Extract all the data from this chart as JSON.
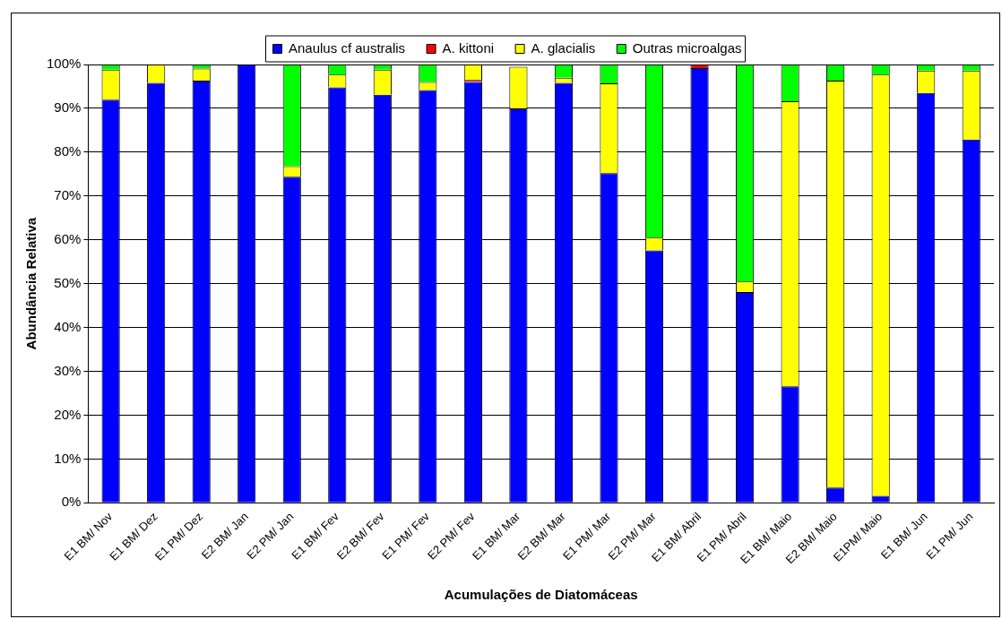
{
  "chart_data": {
    "type": "bar",
    "stacked": true,
    "xlabel": "Acumulações de Diatomáceas",
    "ylabel": "Abundância Relativa",
    "categories": [
      "E1 BM/ Nov",
      "E1 BM/ Dez",
      "E1 PM/ Dez",
      "E2 BM/ Jan",
      "E2 PM/ Jan",
      "E1 BM/ Fev",
      "E2 BM/ Fev",
      "E1 PM/ Fev",
      "E2 PM/ Fev",
      "E1 BM/ Mar",
      "E2 BM/ Mar",
      "E1 PM/ Mar",
      "E2 PM/ Mar",
      "E1 BM/ Abril",
      "E1 PM/ Abril",
      "E1 BM/ Maio",
      "E2 BM/ Maio",
      "E1PM/ Maio",
      "E1 BM/ Jun",
      "E1 PM/ Jun"
    ],
    "series": [
      {
        "name": "Anaulus cf australis",
        "color": "#0000ff",
        "values": [
          92,
          95.8,
          96.3,
          100,
          74.4,
          94.8,
          93.1,
          94.2,
          96,
          90,
          95.8,
          75.2,
          57.6,
          99.2,
          48.1,
          26.6,
          3.5,
          1.6,
          93.5,
          82.9
        ]
      },
      {
        "name": "A. kittoni",
        "color": "#ff0000",
        "values": [
          0,
          0,
          0,
          0,
          0,
          0,
          0,
          0,
          0.5,
          null,
          0,
          0,
          0,
          0.8,
          0,
          0,
          0,
          0,
          0,
          0
        ]
      },
      {
        "name": "A. glacialis",
        "color": "#ffff00",
        "values": [
          6.8,
          4.2,
          2.8,
          0,
          2.4,
          2.9,
          5.7,
          1.8,
          3.5,
          9.5,
          1.2,
          20.5,
          2.9,
          0,
          2.4,
          65,
          92.8,
          96.1,
          5.1,
          15.7
        ]
      },
      {
        "name": "Outras microalgas",
        "color": "#00ff00",
        "values": [
          1.2,
          0,
          0.9,
          0,
          23.2,
          2.3,
          1.2,
          4,
          0,
          0,
          3,
          4.3,
          39.5,
          0,
          49.5,
          8.4,
          3.7,
          2.3,
          1.4,
          1.4
        ]
      }
    ],
    "ylim": [
      0,
      100
    ],
    "yticks": [
      {
        "value": 0,
        "label": "0%"
      },
      {
        "value": 10,
        "label": "10%"
      },
      {
        "value": 20,
        "label": "20%"
      },
      {
        "value": 30,
        "label": "30%"
      },
      {
        "value": 40,
        "label": "40%"
      },
      {
        "value": 50,
        "label": "50%"
      },
      {
        "value": 60,
        "label": "60%"
      },
      {
        "value": 70,
        "label": "70%"
      },
      {
        "value": 80,
        "label": "80%"
      },
      {
        "value": 90,
        "label": "90%"
      },
      {
        "value": 100,
        "label": "100%"
      }
    ],
    "grid": "y",
    "legend": "top"
  }
}
